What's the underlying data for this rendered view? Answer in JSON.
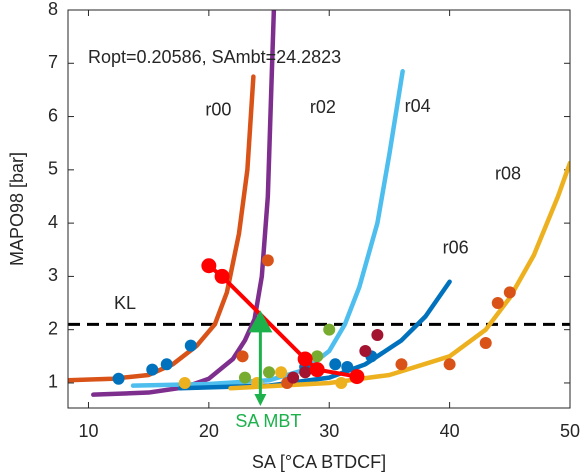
{
  "chart_data": {
    "type": "line",
    "annotation": "Ropt=0.20586, SAmbt=24.2823",
    "x_label": "SA [°CA BTDCF]",
    "y_label": "MAPO98 [bar]",
    "xlim": [
      8.3,
      50
    ],
    "xticks": [
      10,
      20,
      30,
      40,
      50
    ],
    "ylim": [
      0.53,
      8
    ],
    "yticks": [
      1,
      2,
      3,
      4,
      5,
      6,
      7,
      8
    ],
    "grid": false,
    "series": [
      {
        "name": "r00",
        "color": "#D95319",
        "style": "line",
        "x": [
          8.3,
          12,
          15,
          17,
          19,
          20.5,
          21.5,
          22.5,
          23.2,
          23.7
        ],
        "values": [
          1.05,
          1.08,
          1.15,
          1.35,
          1.7,
          2.1,
          2.7,
          3.8,
          5,
          6.75
        ]
      },
      {
        "name": "r02",
        "color": "#7E2F8E",
        "style": "line",
        "x": [
          10.4,
          15,
          18,
          20,
          22,
          23,
          23.8,
          24.4,
          24.9,
          25.4
        ],
        "values": [
          0.78,
          0.82,
          0.92,
          1.08,
          1.45,
          1.8,
          2.2,
          3,
          4.5,
          8
        ]
      },
      {
        "name": "r04",
        "color": "#4DBEEE",
        "style": "line",
        "x": [
          13.7,
          20,
          25,
          28,
          30,
          31.3,
          32.5,
          34,
          35,
          36.1
        ],
        "values": [
          0.95,
          0.98,
          1.05,
          1.25,
          1.6,
          2.1,
          2.8,
          4,
          5.3,
          6.85
        ]
      },
      {
        "name": "r06",
        "color": "#0072BD",
        "style": "line",
        "x": [
          17.6,
          25,
          30,
          33,
          36,
          38,
          40
        ],
        "values": [
          0.9,
          0.95,
          1.1,
          1.35,
          1.8,
          2.25,
          2.9
        ]
      },
      {
        "name": "r08",
        "color": "#EDB120",
        "style": "line",
        "x": [
          21.8,
          30,
          35,
          40,
          43,
          45,
          47,
          49,
          50
        ],
        "values": [
          0.9,
          1.0,
          1.15,
          1.5,
          2.0,
          2.6,
          3.4,
          4.5,
          5.13
        ]
      },
      {
        "color": "#0072BD",
        "style": "points",
        "x": [
          12.5,
          15.3,
          16.5,
          18.5,
          28,
          30.5,
          31.5,
          33.5
        ],
        "values": [
          1.08,
          1.25,
          1.35,
          1.7,
          1.3,
          1.35,
          1.3,
          1.5
        ]
      },
      {
        "color": "#D95319",
        "style": "points",
        "x": [
          22.8,
          24.9,
          26.5,
          36,
          40,
          43,
          44,
          45
        ],
        "values": [
          1.5,
          3.3,
          1.0,
          1.35,
          1.35,
          1.75,
          2.5,
          2.7
        ]
      },
      {
        "color": "#EDB120",
        "style": "points",
        "x": [
          18,
          24,
          26,
          29,
          31
        ],
        "values": [
          1.0,
          1.0,
          1.2,
          1.5,
          1.0
        ]
      },
      {
        "color": "#77AC30",
        "style": "points",
        "x": [
          23,
          25,
          29,
          30
        ],
        "values": [
          1.1,
          1.2,
          1.5,
          2.0
        ]
      },
      {
        "color": "#A2142F",
        "style": "points",
        "x": [
          27,
          28,
          33,
          34
        ],
        "values": [
          1.1,
          1.2,
          1.6,
          1.9
        ]
      },
      {
        "color": "#FF0000",
        "style": "line+points",
        "x": [
          20,
          21.1,
          28,
          29,
          32.3
        ],
        "values": [
          3.2,
          3.0,
          1.45,
          1.25,
          1.12
        ]
      }
    ],
    "reference_line": {
      "label": "KL",
      "value": 2.1,
      "color": "#000000"
    },
    "marker": {
      "label": "SA MBT",
      "x": 24.28,
      "y": 2.1,
      "color": "#1DB14B"
    }
  }
}
